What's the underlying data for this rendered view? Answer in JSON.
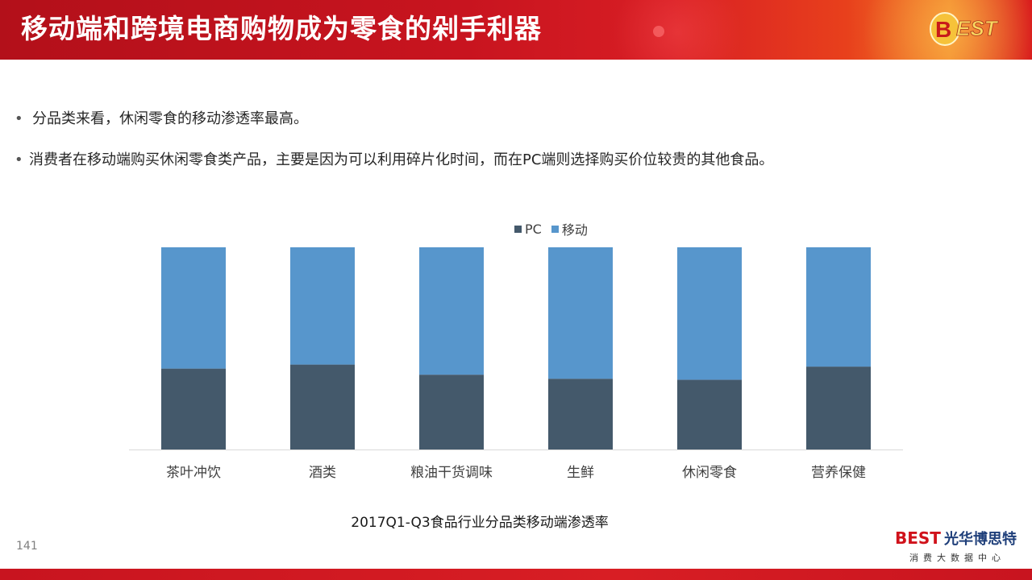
{
  "header": {
    "title": "移动端和跨境电商购物成为零食的剁手利器",
    "logo_text": "BEST"
  },
  "bullets": [
    "分品类来看，休闲零食的移动渗透率最高。",
    "消费者在移动端购买休闲零食类产品，主要是因为可以利用碎片化时间，而在PC端则选择购买价位较贵的其他食品。"
  ],
  "chart_data": {
    "type": "bar",
    "stacked": true,
    "percent": true,
    "categories": [
      "茶叶冲饮",
      "酒类",
      "粮油干货调味",
      "生鲜",
      "休闲零食",
      "营养保健"
    ],
    "series": [
      {
        "name": "PC",
        "color": "#44596b",
        "values": [
          0.4,
          0.42,
          0.37,
          0.35,
          0.345,
          0.41
        ]
      },
      {
        "name": "移动",
        "color": "#5796cc",
        "values": [
          0.6,
          0.58,
          0.63,
          0.65,
          0.655,
          0.59
        ]
      }
    ],
    "ylim": [
      0,
      1
    ],
    "legend_position": "top",
    "title": "2017Q1-Q3食品行业分品类移动端渗透率"
  },
  "footer": {
    "page_number": "141",
    "brand_latin": "BEST",
    "brand_cn": "光华博思特",
    "brand_sub": "消费大数据中心"
  }
}
